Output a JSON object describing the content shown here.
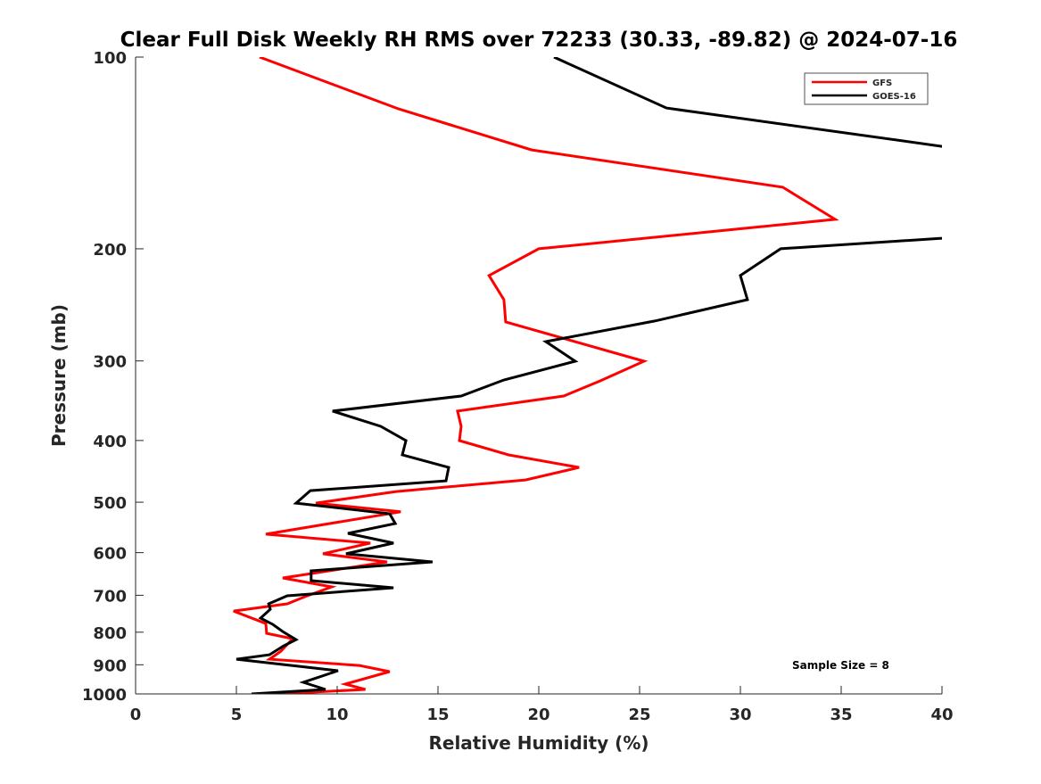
{
  "chart_data": {
    "type": "line",
    "title": "Clear Full Disk Weekly RH RMS over 72233 (30.33, -89.82) @ 2024-07-16",
    "xlabel": "Relative Humidity (%)",
    "ylabel": "Pressure (mb)",
    "xlim": [
      0,
      40
    ],
    "ylim": [
      100,
      1000
    ],
    "yscale": "log",
    "yreversed": true,
    "xticks": [
      "0",
      "5",
      "10",
      "15",
      "20",
      "25",
      "30",
      "35",
      "40"
    ],
    "yticks": [
      "100",
      "200",
      "300",
      "400",
      "500",
      "600",
      "700",
      "800",
      "900",
      "1000"
    ],
    "grid": false,
    "legend_position": "top-right",
    "annotation": "Sample Size = 8",
    "series": [
      {
        "name": "GFS",
        "color": "#ff0000",
        "points": [
          [
            6.15,
            100
          ],
          [
            13.05,
            120.6
          ],
          [
            19.65,
            139.9
          ],
          [
            32.1,
            160.1
          ],
          [
            34.7,
            179.8
          ],
          [
            20.0,
            200
          ],
          [
            17.53,
            220.3
          ],
          [
            18.27,
            240.4
          ],
          [
            18.36,
            260.6
          ],
          [
            25.22,
            300.3
          ],
          [
            23.05,
            322.4
          ],
          [
            21.24,
            340.6
          ],
          [
            15.97,
            359.7
          ],
          [
            16.15,
            380.1
          ],
          [
            16.06,
            400.2
          ],
          [
            18.5,
            421.4
          ],
          [
            22.0,
            441
          ],
          [
            19.34,
            461.3
          ],
          [
            12.92,
            481
          ],
          [
            8.94,
            501.7
          ],
          [
            13.15,
            517.6
          ],
          [
            6.46,
            561.2
          ],
          [
            11.64,
            579.7
          ],
          [
            9.29,
            602.6
          ],
          [
            12.48,
            620.5
          ],
          [
            7.3,
            657.6
          ],
          [
            9.73,
            679.2
          ],
          [
            8.4,
            703.6
          ],
          [
            7.52,
            722
          ],
          [
            4.86,
            741
          ],
          [
            6.46,
            775.3
          ],
          [
            6.5,
            803.3
          ],
          [
            7.79,
            819
          ],
          [
            7.21,
            856.8
          ],
          [
            6.64,
            882.1
          ],
          [
            11.1,
            902.3
          ],
          [
            12.6,
            922.6
          ],
          [
            10.4,
            965.1
          ],
          [
            11.4,
            984
          ],
          [
            7.0,
            1000
          ]
        ]
      },
      {
        "name": "GOES-16",
        "color": "#000000",
        "points": [
          [
            20.75,
            100
          ],
          [
            26.33,
            120.2
          ],
          [
            40.0,
            138.1
          ],
          [
            45.0,
            160
          ],
          [
            45.0,
            185
          ],
          [
            40.0,
            192.5
          ],
          [
            32.0,
            200
          ],
          [
            30.0,
            220.3
          ],
          [
            30.35,
            240.4
          ],
          [
            25.75,
            259.7
          ],
          [
            20.35,
            279.8
          ],
          [
            21.81,
            300.3
          ],
          [
            18.27,
            321.4
          ],
          [
            16.15,
            340.6
          ],
          [
            9.77,
            359.7
          ],
          [
            12.16,
            380.1
          ],
          [
            13.41,
            400.2
          ],
          [
            13.23,
            421.4
          ],
          [
            15.53,
            441
          ],
          [
            15.4,
            462.8
          ],
          [
            8.67,
            479.5
          ],
          [
            7.96,
            501.7
          ],
          [
            12.6,
            521.3
          ],
          [
            12.88,
            540.1
          ],
          [
            10.53,
            559.7
          ],
          [
            12.79,
            579.7
          ],
          [
            10.44,
            602.6
          ],
          [
            14.73,
            620.5
          ],
          [
            8.71,
            640.9
          ],
          [
            8.71,
            664
          ],
          [
            12.79,
            681.4
          ],
          [
            7.52,
            701.4
          ],
          [
            6.6,
            722
          ],
          [
            6.68,
            736.3
          ],
          [
            6.2,
            760.3
          ],
          [
            6.81,
            777.8
          ],
          [
            7.3,
            798.1
          ],
          [
            7.96,
            821.6
          ],
          [
            7.35,
            840.4
          ],
          [
            6.64,
            868
          ],
          [
            5.0,
            882.1
          ],
          [
            10.04,
            919.6
          ],
          [
            8.32,
            959
          ],
          [
            9.42,
            984
          ],
          [
            5.75,
            1000
          ]
        ]
      }
    ]
  }
}
